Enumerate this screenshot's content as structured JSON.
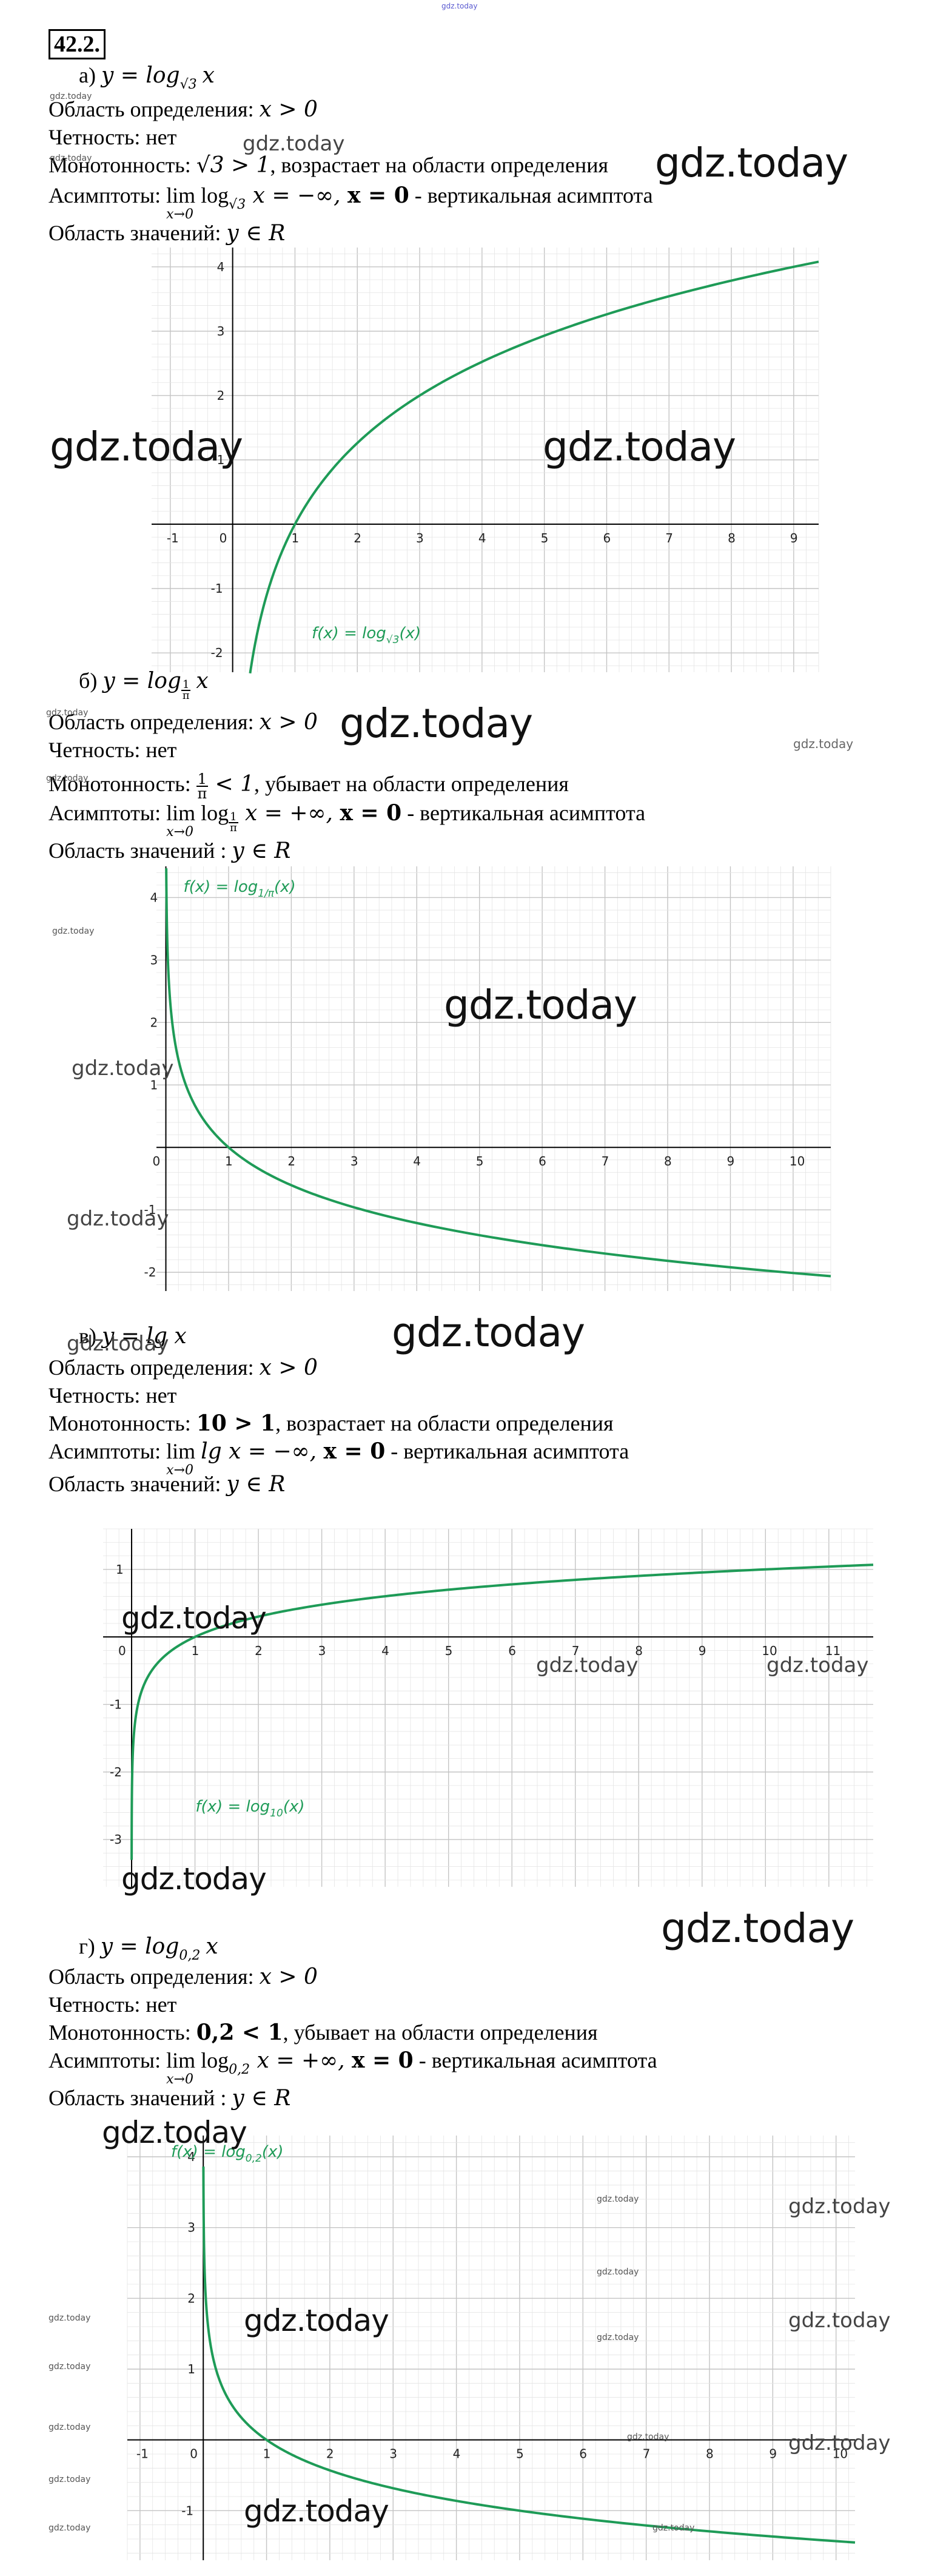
{
  "top_watermark": "gdz.today",
  "problem_number": "42.2.",
  "watermarks": {
    "large": "gdz.today",
    "small": "gdz.today"
  },
  "parts": [
    {
      "label": "а)",
      "function": "y = log",
      "function_base": "√3",
      "function_arg": "x",
      "domain_label": "Область определения:",
      "domain_value": "x > 0",
      "parity_label": "Четность:",
      "parity_value": "нет",
      "monotonic_label": "Монотонность:",
      "monotonic_math": "√3 > 1",
      "monotonic_text": ", возрастает на области определения",
      "asymptote_label": "Асимптоты:",
      "asymptote_lim": "lim",
      "asymptote_under": "x→0",
      "asymptote_expr": "log",
      "asymptote_base": "√3",
      "asymptote_rest": " x = −∞, ",
      "asymptote_x0": "x = 0",
      "asymptote_text": " - вертикальная асимптота",
      "range_label": "Область значений:",
      "range_value": "y ∈ R"
    },
    {
      "label": "б)",
      "function": "y = log",
      "function_base_num": "1",
      "function_base_den": "π",
      "function_arg": "x",
      "domain_label": "Область определения:",
      "domain_value": "x > 0",
      "parity_label": "Четность:",
      "parity_value": "нет",
      "monotonic_label": "Монотонность:",
      "monotonic_num": "1",
      "monotonic_den": "π",
      "monotonic_math": " < 1",
      "monotonic_text": ", убывает на области определения",
      "asymptote_label": "Асимптоты:",
      "asymptote_lim": "lim",
      "asymptote_under": "x→0",
      "asymptote_expr": "log",
      "asymptote_base_num": "1",
      "asymptote_base_den": "π",
      "asymptote_rest": " x = +∞, ",
      "asymptote_x0": "x = 0",
      "asymptote_text": " - вертикальная асимптота",
      "range_label": "Область значений :",
      "range_value": "y ∈ R"
    },
    {
      "label": "в)",
      "function": "y = lg x",
      "domain_label": "Область определения:",
      "domain_value": "x > 0",
      "parity_label": "Четность:",
      "parity_value": "нет",
      "monotonic_label": "Монотонность:",
      "monotonic_math": "10 > 1",
      "monotonic_text": ", возрастает на области определения",
      "asymptote_label": "Асимптоты:",
      "asymptote_lim": "lim",
      "asymptote_under": "x→0",
      "asymptote_expr": "lg x = −∞, ",
      "asymptote_x0": "x = 0",
      "asymptote_text": " - вертикальная асимптота",
      "range_label": "Область значений:",
      "range_value": "y ∈ R"
    },
    {
      "label": "г)",
      "function": "y = log",
      "function_base": "0,2",
      "function_arg": "x",
      "domain_label": "Область определения:",
      "domain_value": "x > 0",
      "parity_label": "Четность:",
      "parity_value": "нет",
      "monotonic_label": "Монотонность:",
      "monotonic_math": "0,2 < 1",
      "monotonic_text": ", убывает на области определения",
      "asymptote_label": "Асимптоты:",
      "asymptote_lim": "lim",
      "asymptote_under": "x→0",
      "asymptote_expr": "log",
      "asymptote_base": "0,2",
      "asymptote_rest": " x = +∞, ",
      "asymptote_x0": "x = 0",
      "asymptote_text": " - вертикальная асимптота",
      "range_label": "Область значений :",
      "range_value": "y ∈ R"
    }
  ],
  "colors": {
    "curve": "#1e9b57",
    "grid_minor": "#e4e4e4",
    "grid_major": "#c4c4c4",
    "axis": "#000000"
  },
  "chart_data": [
    {
      "type": "line",
      "function_base": 1.7320508,
      "legend": "f(x) = log",
      "legend_sub": "√3",
      "legend_end": "(x)",
      "xlim": [
        -1.3,
        9.4
      ],
      "ylim": [
        -2.3,
        4.3
      ],
      "xticks": [
        -1,
        0,
        1,
        2,
        3,
        4,
        5,
        6,
        7,
        8,
        9
      ],
      "yticks": [
        -2,
        -1,
        1,
        2,
        3,
        4
      ],
      "x_domain": [
        0.28,
        9.4
      ],
      "grid": true
    },
    {
      "type": "line",
      "function_base": 0.3183099,
      "legend": "f(x) = log",
      "legend_sub": "1/π",
      "legend_end": "(x)",
      "xlim": [
        -0.15,
        10.6
      ],
      "ylim": [
        -2.3,
        4.5
      ],
      "xticks": [
        0,
        1,
        2,
        3,
        4,
        5,
        6,
        7,
        8,
        9,
        10
      ],
      "yticks": [
        -2,
        -1,
        1,
        2,
        3,
        4
      ],
      "x_domain": [
        0.006,
        10.6
      ],
      "grid": true
    },
    {
      "type": "line",
      "function_base": 10,
      "legend": "f(x) = log",
      "legend_sub": "10",
      "legend_end": "(x)",
      "xlim": [
        -0.45,
        11.7
      ],
      "ylim": [
        -3.7,
        1.6
      ],
      "xticks": [
        0,
        1,
        2,
        3,
        4,
        5,
        6,
        7,
        8,
        9,
        10,
        11
      ],
      "yticks": [
        -3,
        -2,
        -1,
        1
      ],
      "x_domain": [
        0.0005,
        11.7
      ],
      "grid": true
    },
    {
      "type": "line",
      "function_base": 0.2,
      "legend": "f(x) = log",
      "legend_sub": "0,2",
      "legend_end": "(x)",
      "xlim": [
        -1.2,
        10.3
      ],
      "ylim": [
        -1.7,
        4.3
      ],
      "xticks": [
        -1,
        0,
        1,
        2,
        3,
        4,
        5,
        6,
        7,
        8,
        9,
        10
      ],
      "yticks": [
        -1,
        1,
        2,
        3,
        4
      ],
      "x_domain": [
        0.002,
        10.3
      ],
      "grid": true
    }
  ]
}
